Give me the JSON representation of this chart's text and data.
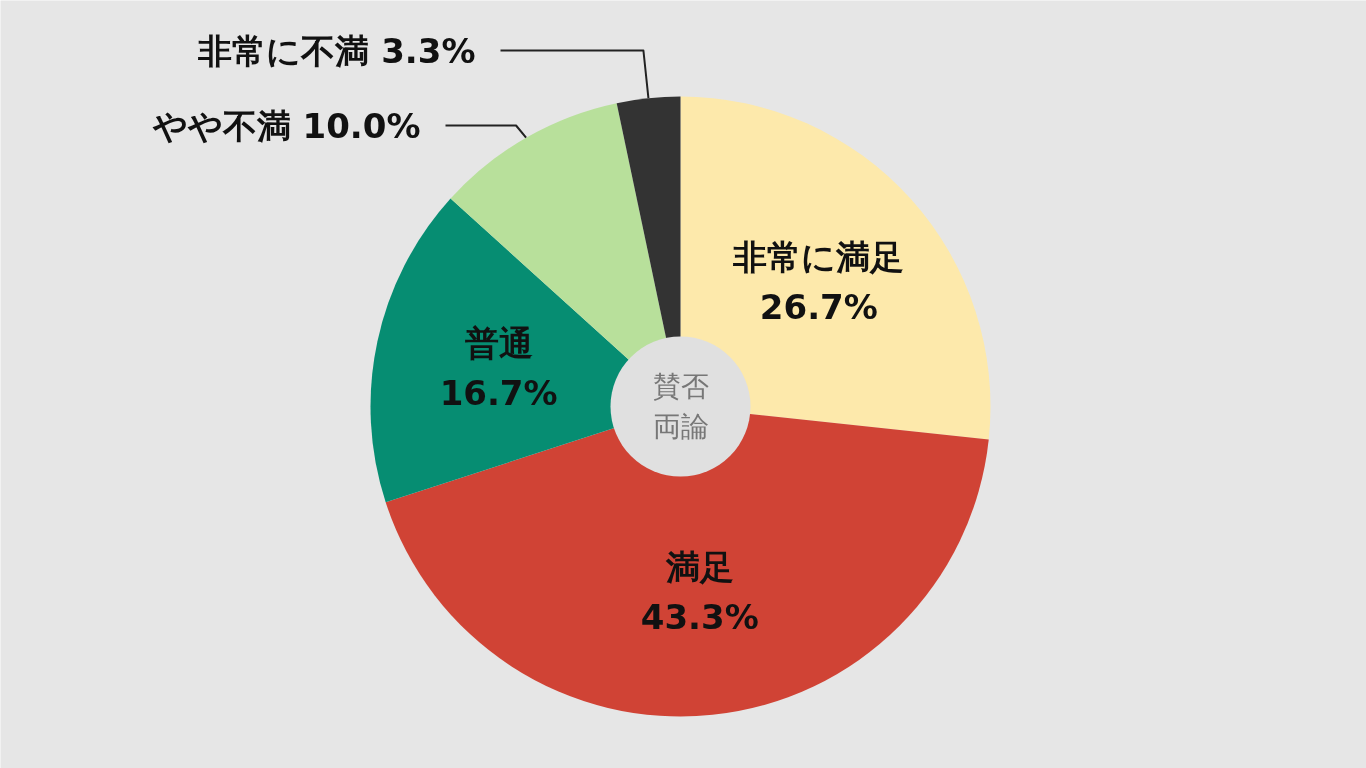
{
  "chart_data": {
    "type": "donut",
    "title": "賛否両論",
    "categories": [
      "非常に満足",
      "満足",
      "普通",
      "やや不満",
      "非常に不満"
    ],
    "values": [
      26.7,
      43.3,
      16.7,
      10.0,
      3.3
    ],
    "value_labels": [
      "26.7%",
      "43.3%",
      "16.7%",
      "10.0%",
      "3.3%"
    ],
    "colors": [
      "#fde9ab",
      "#d04335",
      "#068d72",
      "#b8e09b",
      "#333333"
    ]
  }
}
